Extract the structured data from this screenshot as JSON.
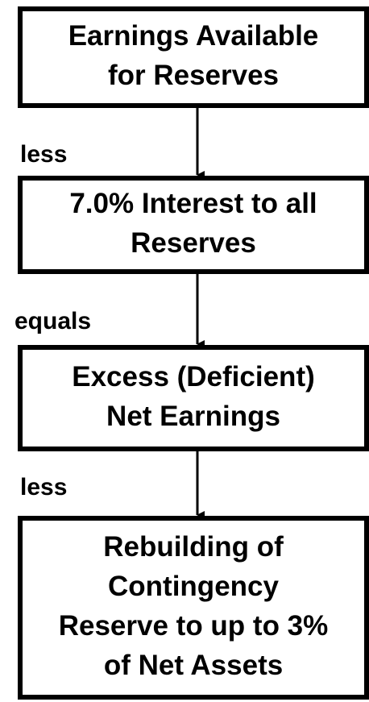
{
  "nodes": [
    {
      "lines": [
        "Earnings Available",
        "for Reserves"
      ]
    },
    {
      "lines": [
        "7.0% Interest to all",
        "Reserves"
      ]
    },
    {
      "lines": [
        "Excess (Deficient)",
        "Net Earnings"
      ]
    },
    {
      "lines": [
        "Rebuilding of",
        "Contingency",
        "Reserve to up to 3%",
        "of Net Assets"
      ]
    }
  ],
  "connectors": [
    {
      "label": "less"
    },
    {
      "label": "equals"
    },
    {
      "label": "less"
    }
  ]
}
